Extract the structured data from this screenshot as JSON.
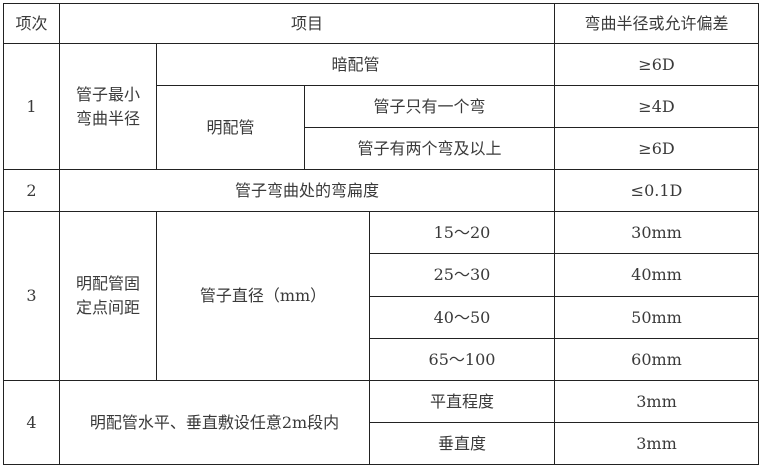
{
  "header": {
    "col_index": "项次",
    "col_item": "项目",
    "col_value": "弯曲半径或允许偏差"
  },
  "rows": {
    "r1": {
      "index": "1",
      "category": "管子最小弯曲半径",
      "concealed": "暗配管",
      "concealed_value": "≥6D",
      "exposed": "明配管",
      "one_bend": "管子只有一个弯",
      "one_bend_value": "≥4D",
      "two_bends": "管子有两个弯及以上",
      "two_bends_value": "≥6D"
    },
    "r2": {
      "index": "2",
      "item": "管子弯曲处的弯扁度",
      "value": "≤0.1D"
    },
    "r3": {
      "index": "3",
      "category": "明配管固定点间距",
      "sub": "管子直径（mm）",
      "ranges": [
        "15～20",
        "25～30",
        "40～50",
        "65～100"
      ],
      "values": [
        "30mm",
        "40mm",
        "50mm",
        "60mm"
      ]
    },
    "r4": {
      "index": "4",
      "item": "明配管水平、垂直敷设任意2m段内",
      "straightness": "平直程度",
      "straightness_value": "3mm",
      "verticality": "垂直度",
      "verticality_value": "3mm"
    }
  }
}
